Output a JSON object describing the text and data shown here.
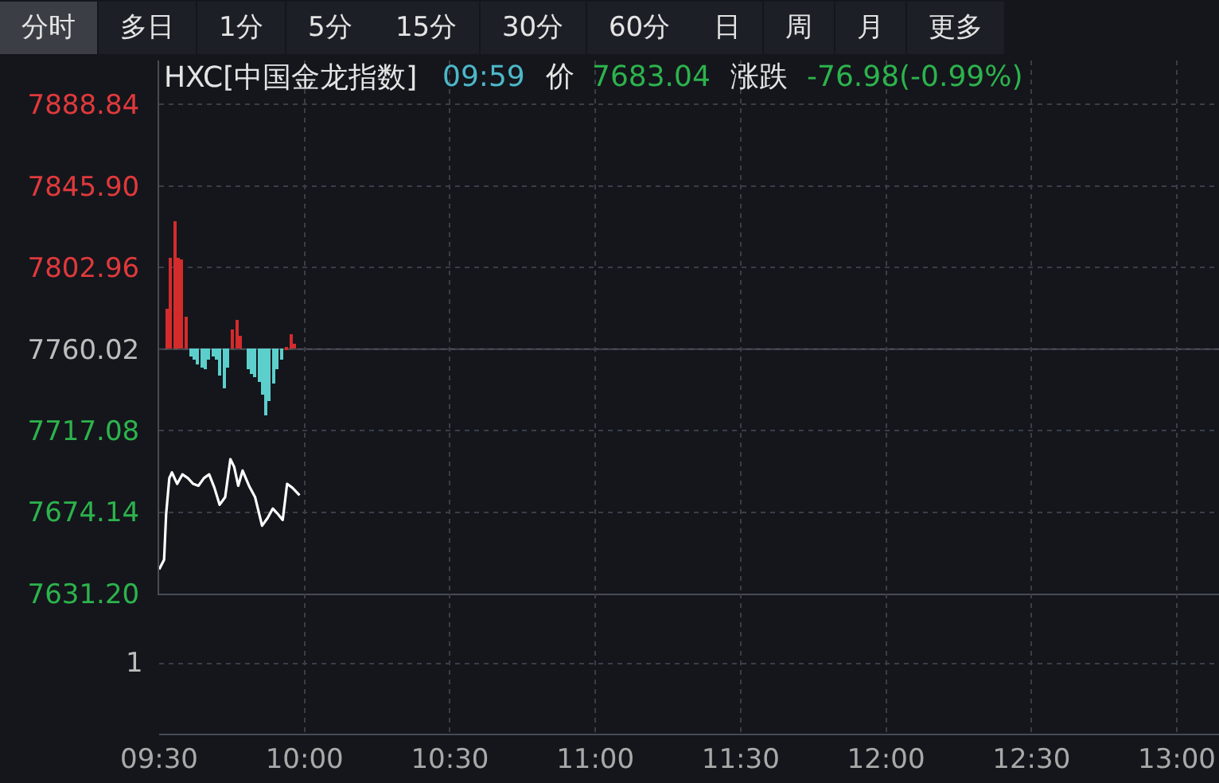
{
  "chart_data": {
    "type": "line",
    "title": "HXC[中国金龙指数]",
    "annotations": [
      "分时",
      "多日",
      "1分",
      "5分",
      "15分",
      "30分",
      "60分",
      "日",
      "周",
      "月",
      "更多",
      "09:59",
      "价",
      "7683.04",
      "涨跌",
      "-76.98(-0.99%)",
      "1"
    ],
    "xlim": [
      9.5,
      13.145
    ],
    "xticks": [
      {
        "value": 9.5,
        "label": "09:30"
      },
      {
        "value": 10,
        "label": "10:00"
      },
      {
        "value": 10.5,
        "label": "10:30"
      },
      {
        "value": 11,
        "label": "11:00"
      },
      {
        "value": 11.5,
        "label": "11:30"
      },
      {
        "value": 12,
        "label": "12:00"
      },
      {
        "value": 12.5,
        "label": "12:30"
      },
      {
        "value": 13,
        "label": "13:00"
      }
    ],
    "ylim": [
      7631.2,
      7912
    ],
    "yticks": [
      7888.84,
      {
        "value": 7845.9,
        "label": "7845.90"
      },
      7802.96,
      7760.02,
      7717.08,
      7674.14,
      {
        "value": 7631.2,
        "label": "7631.20"
      }
    ],
    "grid": true,
    "ref_lines": [
      {
        "axis": "y",
        "value": 7760.02,
        "color": "#50545c"
      }
    ],
    "series": [
      {
        "type": "bar",
        "color": "#d42b2b",
        "x": [
          9.528,
          9.541,
          9.553,
          9.566,
          9.579,
          9.592,
          9.754,
          9.767,
          9.779,
          9.94,
          9.953,
          9.965
        ],
        "values": [
          21,
          48,
          67,
          48,
          47,
          17,
          10,
          15,
          7,
          1,
          8,
          3
        ],
        "base": [
          7760.02,
          7760.02,
          7760.02,
          7760.02,
          7760.02,
          7760.02,
          7760.02,
          7760.02,
          7760.02,
          7760.02,
          7760.02,
          7760.02
        ]
      },
      {
        "type": "bar",
        "color": "#5ccfcc",
        "x": [
          9.608,
          9.621,
          9.634,
          9.646,
          9.659,
          9.672,
          9.685,
          9.697,
          9.71,
          9.723,
          9.736,
          9.805,
          9.818,
          9.83,
          9.843,
          9.856,
          9.869,
          9.881,
          9.894,
          9.907,
          9.92
        ],
        "values": [
          -4,
          -6,
          -8,
          -10,
          -11,
          -6,
          -4,
          -6,
          -14,
          -21,
          -10,
          -11,
          -13,
          -15,
          -17,
          -24,
          -35,
          -27,
          -18,
          -11,
          -6
        ],
        "base": [
          7760.02,
          7760.02,
          7760.02,
          7760.02,
          7760.02,
          7760.02,
          7760.02,
          7760.02,
          7760.02,
          7760.02,
          7760.02,
          7760.02,
          7760.02,
          7760.02,
          7760.02,
          7760.02,
          7760.02,
          7760.02,
          7760.02,
          7760.02,
          7760.02
        ]
      },
      {
        "color": "#ffffff",
        "x": [
          9.5,
          9.517,
          9.524,
          9.535,
          9.544,
          9.562,
          9.58,
          9.599,
          9.617,
          9.635,
          9.654,
          9.672,
          9.69,
          9.708,
          9.727,
          9.745,
          9.758,
          9.772,
          9.787,
          9.809,
          9.83,
          9.854,
          9.873,
          9.891,
          9.909,
          9.925,
          9.94,
          9.958,
          9.983
        ],
        "values": [
          7644,
          7649,
          7673,
          7692,
          7695,
          7689,
          7694,
          7692,
          7689,
          7688,
          7692,
          7694,
          7687,
          7678,
          7682,
          7702,
          7698,
          7688,
          7696,
          7688,
          7682,
          7667,
          7671,
          7676,
          7673,
          7670,
          7689,
          7687,
          7683
        ]
      }
    ]
  }
}
